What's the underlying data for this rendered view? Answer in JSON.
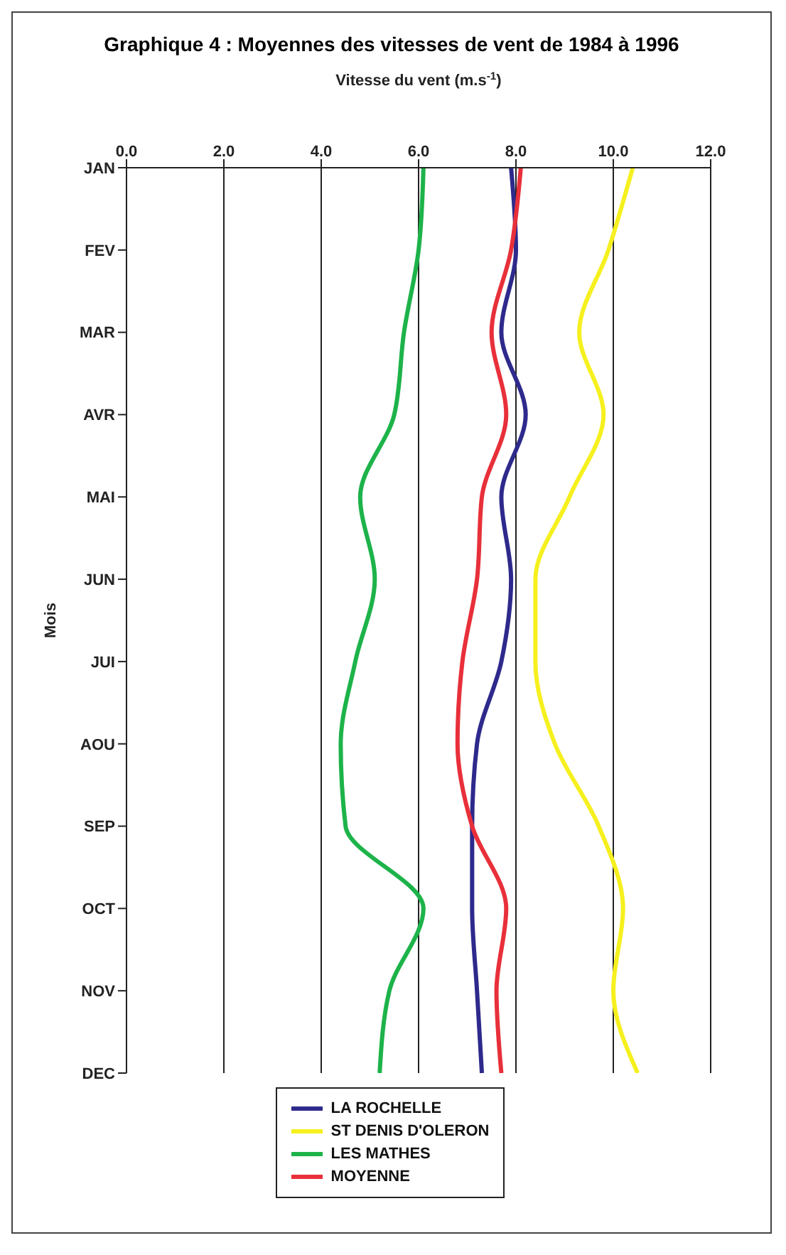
{
  "chart_data": {
    "type": "line",
    "orientation": "horizontal",
    "title": "Graphique 4 : Moyennes des vitesses de vent de 1984 à 1996",
    "ylabel": "Mois",
    "xlabel": "Vitesse du vent (m.s$^{-1}$)",
    "categories": [
      "JAN",
      "FEV",
      "MAR",
      "AVR",
      "MAI",
      "JUN",
      "JUI",
      "AOU",
      "SEP",
      "OCT",
      "NOV",
      "DEC"
    ],
    "series": [
      {
        "name": "LA ROCHELLE",
        "color": "#2e2a8c",
        "values": [
          7.9,
          8.0,
          7.7,
          8.2,
          7.7,
          7.9,
          7.7,
          7.2,
          7.1,
          7.1,
          7.2,
          7.3
        ]
      },
      {
        "name": "ST DENIS D'OLERON",
        "color": "#f5f01e",
        "values": [
          10.4,
          9.9,
          9.3,
          9.8,
          9.1,
          8.4,
          8.4,
          8.8,
          9.7,
          10.2,
          10.0,
          10.5
        ]
      },
      {
        "name": "LES MATHES",
        "color": "#1db34a",
        "values": [
          6.1,
          6.0,
          5.7,
          5.5,
          4.8,
          5.1,
          4.7,
          4.4,
          4.5,
          6.1,
          5.4,
          5.2
        ]
      },
      {
        "name": "MOYENNE",
        "color": "#e8303a",
        "values": [
          8.1,
          7.9,
          7.5,
          7.8,
          7.3,
          7.2,
          6.9,
          6.8,
          7.1,
          7.8,
          7.6,
          7.7
        ]
      }
    ],
    "xlim": [
      0,
      12
    ],
    "xticks": [
      {
        "value": 0,
        "label": "0.0"
      },
      {
        "value": 2,
        "label": "2.0"
      },
      {
        "value": 4,
        "label": "4.0"
      },
      {
        "value": 6,
        "label": "6.0"
      },
      {
        "value": 8,
        "label": "8.0"
      },
      {
        "value": 10,
        "label": "10.0"
      },
      {
        "value": 12,
        "label": "12.0"
      }
    ],
    "grid": "x",
    "legend": "bottom",
    "marker": "none",
    "line_style": "solid"
  }
}
